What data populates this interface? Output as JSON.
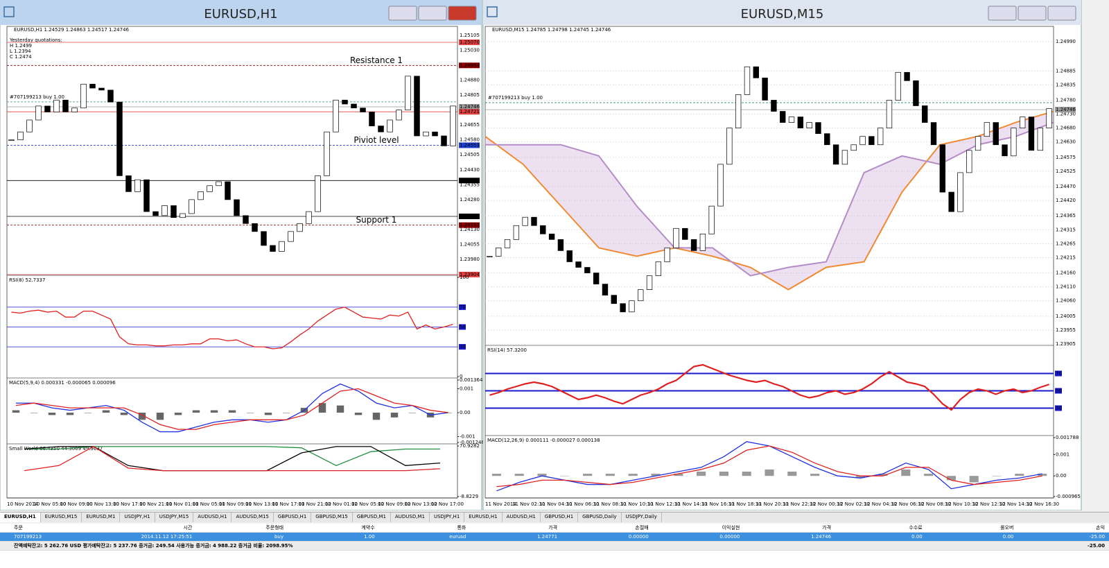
{
  "windows": [
    {
      "title": "EURUSD,H1",
      "info": "EURUSD,H1  1.24529 1.24863 1.24517 1.24746",
      "yesterday": [
        "Yesterday quotations:",
        "H 1.2499",
        "L 1.2394",
        "C 1.2474"
      ],
      "ylim": [
        1.239,
        1.2515
      ],
      "yticks": [
        1.25105,
        {
          "value": 1.2503,
          "label": "1.25030"
        },
        {
          "value": 1.2488,
          "label": "1.24880"
        },
        1.24805,
        1.24655,
        {
          "value": 1.2458,
          "label": "1.24580"
        },
        1.24505,
        {
          "value": 1.2443,
          "label": "1.24430"
        },
        1.24355,
        {
          "value": 1.2428,
          "label": "1.24280"
        },
        {
          "value": 1.2413,
          "label": "1.24130"
        },
        1.24055,
        {
          "value": 1.2398,
          "label": "1.23980"
        }
      ],
      "levels": [
        {
          "value": 1.2507,
          "label": "1.25070",
          "color": "#e04040"
        },
        {
          "value": 1.24954,
          "label": "1.24954",
          "color": "#8b0000",
          "note": "Resistance 1",
          "note_color": "#1e6e1e"
        },
        {
          "value": 1.24771,
          "color": "#2e8b57",
          "note": "#707199213  buy 1.00",
          "note_color": "#000000"
        },
        {
          "value": 1.24746,
          "label": "1.24746",
          "color": "#999999"
        },
        {
          "value": 1.24721,
          "label": "1.24721",
          "color": "#e04040"
        },
        {
          "value": 1.24553,
          "label": "1.24553",
          "color": "#2040d0",
          "note": "Piviot level",
          "note_color": "#2040d0"
        },
        {
          "value": 1.24376,
          "label": "1.24376",
          "color": "#000000"
        },
        {
          "value": 1.24196,
          "label": "1.24196",
          "color": "#000000"
        },
        {
          "value": 1.24152,
          "label": "1.24152",
          "color": "#8b0000",
          "note": "Support 1",
          "note_color": "#8b1a1a"
        },
        {
          "value": 1.23904,
          "label": "1.23904",
          "color": "#e04040"
        }
      ],
      "closes": [
        1.2458,
        1.2462,
        1.2468,
        1.2475,
        1.2472,
        1.2478,
        1.2472,
        1.2474,
        1.2486,
        1.2484,
        1.2483,
        1.2477,
        1.244,
        1.2432,
        1.2438,
        1.2422,
        1.242,
        1.2425,
        1.2419,
        1.2421,
        1.2428,
        1.2432,
        1.2435,
        1.2437,
        1.2428,
        1.242,
        1.2416,
        1.2412,
        1.2405,
        1.2402,
        1.2407,
        1.2412,
        1.2416,
        1.2422,
        1.244,
        1.2462,
        1.2478,
        1.2476,
        1.2474,
        1.2472,
        1.2465,
        1.2462,
        1.2468,
        1.2473,
        1.249,
        1.246,
        1.2462,
        1.246,
        1.2455,
        1.2475
      ],
      "time_labels": [
        "10 Nov 2014",
        "10 Nov 05:00",
        "10 Nov 09:00",
        "10 Nov 13:00",
        "10 Nov 17:00",
        "10 Nov 21:00",
        "11 Nov 01:00",
        "11 Nov 05:00",
        "11 Nov 09:00",
        "11 Nov 13:00",
        "11 Nov 17:00",
        "11 Nov 21:00",
        "12 Nov 01:00",
        "12 Nov 05:00",
        "12 Nov 09:00",
        "12 Nov 13:00",
        "12 Nov 17:00"
      ],
      "panels": [
        {
          "label": "RSI(8) 52.7337",
          "ylim": [
            0,
            100
          ],
          "yticks": [
            100,
            0
          ],
          "levels": [
            70,
            50,
            30
          ],
          "lines": [
            {
              "color": "#e02020",
              "values": [
                65,
                64,
                66,
                67,
                65,
                66,
                60,
                60,
                66,
                66,
                62,
                58,
                40,
                33,
                32,
                32,
                31,
                31,
                32,
                32,
                33,
                33,
                38,
                38,
                36,
                37,
                33,
                30,
                30,
                28,
                29,
                35,
                42,
                48,
                56,
                62,
                68,
                70,
                65,
                60,
                59,
                58,
                62,
                61,
                65,
                48,
                52,
                48,
                50,
                52.7337
              ]
            }
          ]
        },
        {
          "label": "MACD(5,9,4) 0.000331 -0.000065 0.000096",
          "ylim": [
            -0.001248,
            0.001364
          ],
          "yticks": [
            0.001364,
            0.001,
            {
              "value": 0,
              "label": "0.00"
            },
            -0.001,
            -0.001248
          ],
          "hist": {
            "color": "#666666",
            "values": [
              0.0001,
              0,
              -0.0001,
              -0.0001,
              0,
              0.0001,
              -0.0001,
              -0.0003,
              -0.0003,
              -0.0001,
              0.0001,
              0.0001,
              0.0001,
              0,
              -0.0001,
              0,
              0.0002,
              0.0004,
              0.0003,
              -0.0001,
              -0.0003,
              -0.0002,
              0,
              -0.0002,
              0
            ]
          },
          "lines": [
            {
              "color": "#2030e0",
              "values": [
                0.0004,
                0.0004,
                0.0002,
                0.0001,
                0.0002,
                0.0003,
                0.0001,
                -0.0004,
                -0.0008,
                -0.0008,
                -0.0006,
                -0.0004,
                -0.0003,
                -0.0003,
                -0.0004,
                -0.0003,
                0.0001,
                0.0008,
                0.0012,
                0.0009,
                0.0004,
                0.0002,
                0.0003,
                -0.0001,
                0
              ]
            },
            {
              "color": "#e02020",
              "values": [
                0.0003,
                0.0004,
                0.0003,
                0.0002,
                0.0002,
                0.0002,
                0.0002,
                -0.0001,
                -0.0005,
                -0.0007,
                -0.0007,
                -0.0005,
                -0.0004,
                -0.0003,
                -0.0003,
                -0.0003,
                -0.0001,
                0.0004,
                0.0009,
                0.001,
                0.0007,
                0.0004,
                0.0003,
                0.0001,
                0
              ]
            }
          ]
        },
        {
          "label": "Small World 66.4350 44.3069 49.9637",
          "ylim": [
            -8.8229,
            70.9282
          ],
          "yticks": [
            70.9282,
            -8.8229
          ],
          "lines": [
            {
              "color": "#1e8e3e",
              "values": [
                66,
                66,
                70,
                70,
                70,
                70,
                70,
                70,
                68,
                40,
                62,
                66,
                66
              ]
            },
            {
              "color": "#000000",
              "values": [
                66,
                70,
                70,
                40,
                32,
                32,
                32,
                32,
                60,
                70,
                70,
                40,
                44
              ]
            },
            {
              "color": "#e02020",
              "values": [
                32,
                40,
                70,
                36,
                32,
                32,
                32,
                32,
                32,
                32,
                32,
                32,
                35
              ]
            }
          ]
        }
      ]
    },
    {
      "title": "EURUSD,M15",
      "info": "EURUSD,M15  1.24785 1.24798 1.24745 1.24746",
      "ylim": [
        1.239,
        1.25045
      ],
      "yticks": [
        {
          "value": 1.2499,
          "label": "1.24990"
        },
        1.24885,
        1.24835,
        {
          "value": 1.2478,
          "label": "1.24780"
        },
        {
          "value": 1.2473,
          "label": "1.24730"
        },
        {
          "value": 1.2468,
          "label": "1.24680"
        },
        {
          "value": 1.2463,
          "label": "1.24630"
        },
        1.24575,
        1.24525,
        {
          "value": 1.2447,
          "label": "1.24470"
        },
        {
          "value": 1.2442,
          "label": "1.24420"
        },
        1.24365,
        1.24315,
        1.24265,
        1.24215,
        {
          "value": 1.2416,
          "label": "1.24160"
        },
        {
          "value": 1.2411,
          "label": "1.24110"
        },
        {
          "value": 1.2406,
          "label": "1.24060"
        },
        1.24005,
        1.23955,
        1.23905
      ],
      "levels": [
        {
          "value": 1.24771,
          "color": "#2e8b57",
          "note": "#707199213  buy 1.00",
          "note_color": "#000000"
        },
        {
          "value": 1.24746,
          "label": "1.24746",
          "color": "#999999"
        }
      ],
      "closes": [
        1.2422,
        1.2425,
        1.2428,
        1.2433,
        1.2436,
        1.2433,
        1.243,
        1.2428,
        1.2424,
        1.242,
        1.2418,
        1.2416,
        1.2412,
        1.2408,
        1.2405,
        1.2402,
        1.2406,
        1.241,
        1.2415,
        1.242,
        1.2425,
        1.2432,
        1.2428,
        1.2424,
        1.243,
        1.244,
        1.2455,
        1.2468,
        1.248,
        1.249,
        1.2486,
        1.2478,
        1.2474,
        1.247,
        1.2472,
        1.2468,
        1.247,
        1.2466,
        1.2462,
        1.2455,
        1.246,
        1.2462,
        1.2465,
        1.2462,
        1.2468,
        1.2478,
        1.2488,
        1.2485,
        1.2476,
        1.247,
        1.2462,
        1.2445,
        1.2438,
        1.2452,
        1.246,
        1.2465,
        1.247,
        1.2462,
        1.2458,
        1.2468,
        1.2472,
        1.246,
        1.2468,
        1.2475
      ],
      "cloud": {
        "span_a": {
          "color": "#f08a30",
          "values": [
            1.2465,
            1.2455,
            1.244,
            1.2425,
            1.2422,
            1.2425,
            1.2422,
            1.2418,
            1.241,
            1.2418,
            1.242,
            1.2445,
            1.2462,
            1.2465,
            1.247,
            1.2474
          ]
        },
        "span_b": {
          "color": "#b48cc8",
          "values": [
            1.2462,
            1.2462,
            1.2462,
            1.2458,
            1.244,
            1.2425,
            1.2425,
            1.2415,
            1.2418,
            1.242,
            1.2452,
            1.2458,
            1.2455,
            1.2462,
            1.2465,
            1.247
          ]
        }
      },
      "time_labels": [
        "11 Nov 2014",
        "11 Nov 02:30",
        "11 Nov 04:30",
        "11 Nov 06:30",
        "11 Nov 08:30",
        "11 Nov 10:30",
        "11 Nov 12:30",
        "11 Nov 14:30",
        "11 Nov 16:30",
        "11 Nov 18:30",
        "11 Nov 20:30",
        "11 Nov 22:30",
        "12 Nov 00:30",
        "12 Nov 02:30",
        "12 Nov 04:30",
        "12 Nov 06:30",
        "12 Nov 08:30",
        "12 Nov 10:30",
        "12 Nov 12:30",
        "12 Nov 14:30",
        "12 Nov 16:30"
      ],
      "panels": [
        {
          "label": "RSI(14) 57.3200",
          "ylim": [
            0,
            100
          ],
          "levels": [
            70,
            50,
            30
          ],
          "lines": [
            {
              "color": "#e02020",
              "values": [
                45,
                48,
                52,
                55,
                58,
                60,
                58,
                55,
                50,
                45,
                40,
                42,
                45,
                42,
                38,
                35,
                40,
                45,
                48,
                52,
                58,
                62,
                70,
                78,
                80,
                76,
                72,
                68,
                65,
                62,
                60,
                62,
                58,
                55,
                50,
                45,
                42,
                44,
                48,
                50,
                46,
                48,
                52,
                58,
                66,
                72,
                66,
                60,
                58,
                55,
                46,
                35,
                28,
                40,
                48,
                52,
                50,
                46,
                50,
                52,
                48,
                50,
                54,
                57.32
              ]
            }
          ]
        },
        {
          "label": "MACD(12,26,9) 0.000111 -0.000027 0.000138",
          "ylim": [
            -0.000965,
            0.001788
          ],
          "yticks": [
            0.001788,
            0.001,
            {
              "value": 0,
              "label": "0.00"
            },
            -0.000965
          ],
          "hist": {
            "color": "#999999",
            "values": [
              0.0001,
              0.0001,
              0.0001,
              0,
              0.0001,
              0.0001,
              0.0001,
              0.0001,
              0.0001,
              0.0002,
              0.0002,
              0.0002,
              0.0003,
              0.0002,
              0.0001,
              0,
              -0.0001,
              0.0001,
              0.0003,
              0.0001,
              -0.0002,
              -0.0003,
              0,
              0.0001,
              0.0001
            ]
          },
          "lines": [
            {
              "color": "#2030e0",
              "values": [
                -0.0007,
                -0.0003,
                0,
                -0.0002,
                -0.0004,
                -0.0004,
                -0.0002,
                0,
                0.0002,
                0.0004,
                0.0009,
                0.0016,
                0.0014,
                0.0009,
                0.0004,
                0,
                -0.0001,
                0.0001,
                0.0006,
                0.0003,
                -0.0006,
                -0.0004,
                -0.0002,
                -0.0001,
                0.0001
              ]
            },
            {
              "color": "#e02020",
              "values": [
                -0.0005,
                -0.0004,
                -0.0002,
                -0.0002,
                -0.0003,
                -0.0004,
                -0.0003,
                -0.0001,
                0.0001,
                0.0003,
                0.0006,
                0.0012,
                0.0014,
                0.0011,
                0.0006,
                0.0002,
                0,
                0,
                0.0004,
                0.0004,
                -0.0002,
                -0.0004,
                -0.0003,
                -0.0002,
                0
              ]
            }
          ]
        }
      ]
    }
  ],
  "tabs": [
    "EURUSD,H1",
    "EURUSD,M15",
    "EURUSD,M1",
    "USDJPY,H1",
    "USDJPY,M15",
    "AUDUSD,H1",
    "AUDUSD,M15",
    "GBPUSD,H1",
    "GBPUSD,M15",
    "GBPUSD,M1",
    "AUDUSD,M1",
    "USDJPY,H1",
    "EURUSD,H1",
    "AUDUSD,H1",
    "GBPUSD,H1",
    "GBPUSD,Daily",
    "USDJPY,Daily"
  ],
  "table": {
    "headers": [
      "주문",
      "시간",
      "주문형태",
      "계약수",
      "통화",
      "가격",
      "손절매",
      "이익실현",
      "가격",
      "수수료",
      "롤오버",
      "손익"
    ],
    "row": [
      "707199213",
      "2014.11.12 17:25:51",
      "buy",
      "1.00",
      "eurusd",
      "1.24771",
      "0.00000",
      "0.00000",
      "1.24746",
      "0.00",
      "0.00",
      "-25.00"
    ],
    "footer": [
      "잔액예탁잔고: 5 262.76 USD  평가예탁잔고: 5 237.76  증거금: 249.54  사용가능 증거금: 4 988.22  증거금 비율: 2098.95%",
      "-25.00"
    ]
  }
}
